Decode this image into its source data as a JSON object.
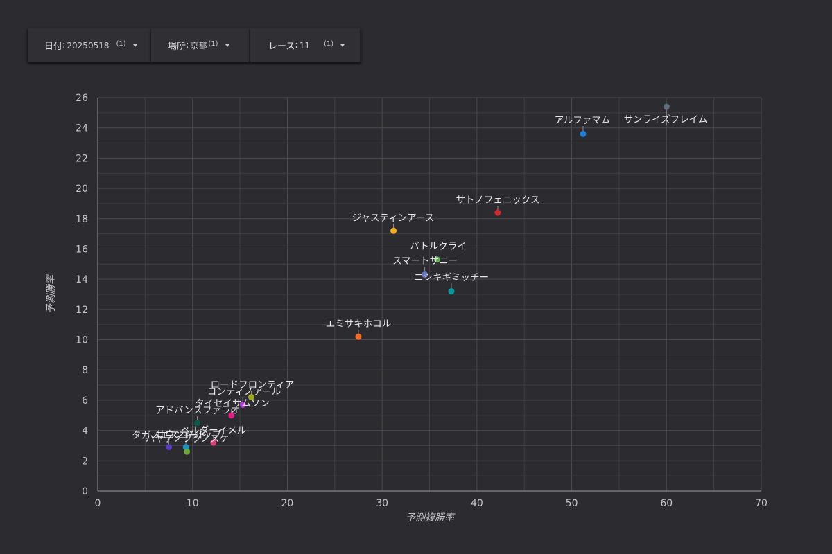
{
  "filters": [
    {
      "label": "日付",
      "value": "20250518",
      "count": "(1)"
    },
    {
      "label": "場所",
      "value": "京都",
      "count": "(1)"
    },
    {
      "label": "レース",
      "value": "11",
      "count": "(1)"
    }
  ],
  "chart_data": {
    "type": "scatter",
    "xlabel": "予測複勝率",
    "ylabel": "予測勝率",
    "xlim": [
      0,
      70
    ],
    "ylim": [
      0,
      26
    ],
    "xticks": [
      0,
      10,
      20,
      30,
      40,
      50,
      60,
      70
    ],
    "yticks": [
      0,
      2,
      4,
      6,
      8,
      10,
      12,
      14,
      16,
      18,
      20,
      22,
      24,
      26
    ],
    "grid": true,
    "points": [
      {
        "name": "サンライズフレイム",
        "x": 60.0,
        "y": 25.4,
        "color": "#5f6e78"
      },
      {
        "name": "アルファマム",
        "x": 51.2,
        "y": 23.6,
        "color": "#1e7fd8"
      },
      {
        "name": "サトノフェニックス",
        "x": 42.2,
        "y": 18.4,
        "color": "#d22b2b"
      },
      {
        "name": "ジャスティンアース",
        "x": 31.2,
        "y": 17.2,
        "color": "#f2b01e"
      },
      {
        "name": "バトルクライ",
        "x": 35.8,
        "y": 15.3,
        "color": "#62b44e"
      },
      {
        "name": "スマートサニー",
        "x": 34.5,
        "y": 14.3,
        "color": "#6a74c8"
      },
      {
        "name": "ニシキギミッチー",
        "x": 37.3,
        "y": 13.2,
        "color": "#0c9aa0"
      },
      {
        "name": "エミサキホコル",
        "x": 27.5,
        "y": 10.2,
        "color": "#f26a24"
      },
      {
        "name": "ロードフロンティア",
        "x": 16.2,
        "y": 6.2,
        "color": "#9aa91e"
      },
      {
        "name": "コンティノアール",
        "x": 15.3,
        "y": 5.7,
        "color": "#b03ed4"
      },
      {
        "name": "タイセイサムソン",
        "x": 14.1,
        "y": 5.0,
        "color": "#d81e80"
      },
      {
        "name": "アドバンスファラオ",
        "x": 10.5,
        "y": 4.5,
        "color": "#0d5a4a"
      },
      {
        "name": "ベルダーイメル",
        "x": 12.2,
        "y": 3.2,
        "color": "#e0407a"
      },
      {
        "name": "タガノエスコート",
        "x": 7.5,
        "y": 2.9,
        "color": "#5a3cc0"
      },
      {
        "name": "サウンドアップ",
        "x": 9.3,
        "y": 2.9,
        "color": "#1e90c0"
      },
      {
        "name": "ハヤテノフクノスケ",
        "x": 9.4,
        "y": 2.6,
        "color": "#6aa83a"
      }
    ]
  }
}
